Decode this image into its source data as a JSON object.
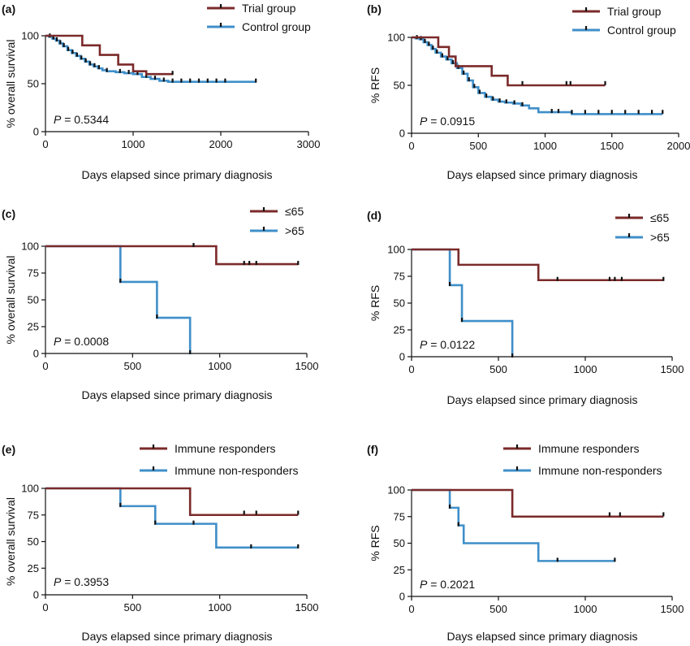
{
  "chart_data": [
    {
      "type": "line",
      "panel": "(a)",
      "xlabel": "Days elapsed since primary diagnosis",
      "ylabel": "% overall survival",
      "xlim": [
        0,
        3000
      ],
      "ylim": [
        0,
        100
      ],
      "xticks": [
        0,
        1000,
        2000,
        3000
      ],
      "yticks": [
        0,
        50,
        100
      ],
      "p_value": "0.5344",
      "legend": "top-right",
      "series": [
        {
          "name": "Trial group",
          "color": "#7b2a2a",
          "steps": [
            [
              0,
              100
            ],
            [
              420,
              90
            ],
            [
              620,
              80
            ],
            [
              830,
              70
            ],
            [
              1000,
              63
            ],
            [
              1150,
              60
            ],
            [
              1450,
              60
            ]
          ],
          "censored": [
            [
              1450,
              60
            ]
          ]
        },
        {
          "name": "Control group",
          "color": "#3f8fc9",
          "steps": [
            [
              0,
              100
            ],
            [
              40,
              99
            ],
            [
              80,
              97
            ],
            [
              120,
              95
            ],
            [
              160,
              92
            ],
            [
              200,
              89
            ],
            [
              250,
              85
            ],
            [
              300,
              82
            ],
            [
              350,
              79
            ],
            [
              400,
              76
            ],
            [
              450,
              73
            ],
            [
              500,
              70
            ],
            [
              550,
              68
            ],
            [
              600,
              66
            ],
            [
              650,
              64
            ],
            [
              700,
              63
            ],
            [
              800,
              62
            ],
            [
              900,
              61
            ],
            [
              1000,
              60
            ],
            [
              1100,
              57
            ],
            [
              1200,
              55
            ],
            [
              1300,
              53
            ],
            [
              1400,
              52
            ],
            [
              2400,
              52
            ]
          ],
          "censored": [
            [
              50,
              99
            ],
            [
              90,
              97
            ],
            [
              130,
              95
            ],
            [
              170,
              92
            ],
            [
              210,
              89
            ],
            [
              260,
              85
            ],
            [
              310,
              82
            ],
            [
              360,
              79
            ],
            [
              410,
              76
            ],
            [
              460,
              73
            ],
            [
              510,
              70
            ],
            [
              560,
              68
            ],
            [
              610,
              66
            ],
            [
              700,
              63
            ],
            [
              850,
              62
            ],
            [
              950,
              61
            ],
            [
              1050,
              60
            ],
            [
              1150,
              57
            ],
            [
              1250,
              55
            ],
            [
              1350,
              53
            ],
            [
              1450,
              52
            ],
            [
              1550,
              52
            ],
            [
              1650,
              52
            ],
            [
              1750,
              52
            ],
            [
              1850,
              52
            ],
            [
              1950,
              52
            ],
            [
              2050,
              52
            ],
            [
              2400,
              52
            ]
          ]
        }
      ]
    },
    {
      "type": "line",
      "panel": "(b)",
      "xlabel": "Days elapsed since primary diagnosis",
      "ylabel": "% RFS",
      "xlim": [
        0,
        2000
      ],
      "ylim": [
        0,
        100
      ],
      "xticks": [
        0,
        500,
        1000,
        1500,
        2000
      ],
      "yticks": [
        0,
        50,
        100
      ],
      "p_value": "0.0915",
      "legend": "top-right",
      "series": [
        {
          "name": "Trial group",
          "color": "#7b2a2a",
          "steps": [
            [
              0,
              100
            ],
            [
              200,
              90
            ],
            [
              280,
              80
            ],
            [
              330,
              70
            ],
            [
              600,
              60
            ],
            [
              720,
              50
            ],
            [
              1450,
              50
            ]
          ],
          "censored": [
            [
              830,
              51
            ],
            [
              1160,
              51
            ],
            [
              1190,
              51
            ],
            [
              1450,
              51
            ]
          ]
        },
        {
          "name": "Control group",
          "color": "#3f8fc9",
          "steps": [
            [
              0,
              100
            ],
            [
              30,
              99
            ],
            [
              60,
              98
            ],
            [
              90,
              95
            ],
            [
              120,
              92
            ],
            [
              150,
              88
            ],
            [
              180,
              84
            ],
            [
              220,
              80
            ],
            [
              260,
              77
            ],
            [
              300,
              73
            ],
            [
              340,
              68
            ],
            [
              380,
              62
            ],
            [
              420,
              55
            ],
            [
              460,
              48
            ],
            [
              500,
              42
            ],
            [
              550,
              38
            ],
            [
              600,
              35
            ],
            [
              650,
              33
            ],
            [
              700,
              32
            ],
            [
              760,
              31
            ],
            [
              820,
              29
            ],
            [
              880,
              26
            ],
            [
              950,
              22
            ],
            [
              1200,
              20
            ],
            [
              1880,
              20
            ]
          ],
          "censored": [
            [
              40,
              99
            ],
            [
              70,
              98
            ],
            [
              100,
              95
            ],
            [
              130,
              92
            ],
            [
              160,
              88
            ],
            [
              190,
              84
            ],
            [
              230,
              80
            ],
            [
              270,
              77
            ],
            [
              310,
              73
            ],
            [
              350,
              68
            ],
            [
              390,
              62
            ],
            [
              430,
              55
            ],
            [
              470,
              48
            ],
            [
              510,
              42
            ],
            [
              560,
              38
            ],
            [
              610,
              35
            ],
            [
              660,
              33
            ],
            [
              710,
              32
            ],
            [
              770,
              31
            ],
            [
              830,
              29
            ],
            [
              1050,
              22
            ],
            [
              1100,
              22
            ],
            [
              1200,
              21
            ],
            [
              1300,
              21
            ],
            [
              1400,
              21
            ],
            [
              1500,
              21
            ],
            [
              1600,
              21
            ],
            [
              1700,
              21
            ],
            [
              1800,
              21
            ],
            [
              1880,
              21
            ]
          ]
        }
      ]
    },
    {
      "type": "line",
      "panel": "(c)",
      "xlabel": "Days elapsed since primary diagnosis",
      "ylabel": "% overall survival",
      "xlim": [
        0,
        1500
      ],
      "ylim": [
        0,
        100
      ],
      "xticks": [
        0,
        500,
        1000,
        1500
      ],
      "yticks": [
        0,
        25,
        50,
        75,
        100
      ],
      "p_value": "0.0008",
      "legend": "top-right",
      "series": [
        {
          "name": "≤65",
          "color": "#7b2a2a",
          "steps": [
            [
              0,
              100
            ],
            [
              980,
              83.3
            ],
            [
              1450,
              83.3
            ]
          ],
          "censored": [
            [
              850,
              100
            ],
            [
              1140,
              83.3
            ],
            [
              1170,
              83.3
            ],
            [
              1210,
              83.3
            ],
            [
              1450,
              83.3
            ]
          ]
        },
        {
          "name": ">65",
          "color": "#3f8fc9",
          "steps": [
            [
              0,
              100
            ],
            [
              430,
              66.7
            ],
            [
              640,
              33.3
            ],
            [
              830,
              0
            ]
          ],
          "censored": [
            [
              430,
              66.7
            ],
            [
              640,
              33.3
            ],
            [
              830,
              0
            ]
          ]
        }
      ]
    },
    {
      "type": "line",
      "panel": "(d)",
      "xlabel": "Days elapsed since primary diagnosis",
      "ylabel": "% RFS",
      "xlim": [
        0,
        1500
      ],
      "ylim": [
        0,
        100
      ],
      "xticks": [
        0,
        500,
        1000,
        1500
      ],
      "yticks": [
        0,
        25,
        50,
        75,
        100
      ],
      "p_value": "0.0122",
      "legend": "top-right",
      "series": [
        {
          "name": "≤65",
          "color": "#7b2a2a",
          "steps": [
            [
              0,
              100
            ],
            [
              270,
              85.7
            ],
            [
              730,
              71.4
            ],
            [
              1450,
              71.4
            ]
          ],
          "censored": [
            [
              840,
              71.4
            ],
            [
              1140,
              71.4
            ],
            [
              1170,
              71.4
            ],
            [
              1210,
              71.4
            ],
            [
              1450,
              71.4
            ]
          ]
        },
        {
          "name": ">65",
          "color": "#3f8fc9",
          "steps": [
            [
              0,
              100
            ],
            [
              220,
              66.7
            ],
            [
              290,
              33.3
            ],
            [
              580,
              0
            ]
          ],
          "censored": [
            [
              220,
              66.7
            ],
            [
              290,
              33.3
            ],
            [
              580,
              0
            ]
          ]
        }
      ]
    },
    {
      "type": "line",
      "panel": "(e)",
      "xlabel": "Days elapsed since primary diagnosis",
      "ylabel": "% overall survival",
      "xlim": [
        0,
        1500
      ],
      "ylim": [
        0,
        100
      ],
      "xticks": [
        0,
        500,
        1000,
        1500
      ],
      "yticks": [
        0,
        25,
        50,
        75,
        100
      ],
      "p_value": "0.3953",
      "legend": "top-right",
      "series": [
        {
          "name": "Immune responders",
          "color": "#7b2a2a",
          "steps": [
            [
              0,
              100
            ],
            [
              830,
              75
            ],
            [
              1450,
              75
            ]
          ],
          "censored": [
            [
              1140,
              76
            ],
            [
              1210,
              76
            ],
            [
              1450,
              76
            ]
          ]
        },
        {
          "name": "Immune non-responders",
          "color": "#3f8fc9",
          "steps": [
            [
              0,
              100
            ],
            [
              430,
              83.3
            ],
            [
              630,
              66.7
            ],
            [
              980,
              44.4
            ],
            [
              1450,
              44.4
            ]
          ],
          "censored": [
            [
              430,
              83.3
            ],
            [
              630,
              66.7
            ],
            [
              850,
              66.7
            ],
            [
              1180,
              44.4
            ],
            [
              1450,
              44.4
            ]
          ]
        }
      ]
    },
    {
      "type": "line",
      "panel": "(f)",
      "xlabel": "Days elapsed since primary diagnosis",
      "ylabel": "% RFS",
      "xlim": [
        0,
        1500
      ],
      "ylim": [
        0,
        100
      ],
      "xticks": [
        0,
        500,
        1000,
        1500
      ],
      "yticks": [
        0,
        25,
        50,
        75,
        100
      ],
      "p_value": "0.2021",
      "legend": "top-right",
      "series": [
        {
          "name": "Immune responders",
          "color": "#7b2a2a",
          "steps": [
            [
              0,
              100
            ],
            [
              580,
              75
            ],
            [
              1450,
              75
            ]
          ],
          "censored": [
            [
              1140,
              76
            ],
            [
              1200,
              76
            ],
            [
              1450,
              76
            ]
          ]
        },
        {
          "name": "Immune non-responders",
          "color": "#3f8fc9",
          "steps": [
            [
              0,
              100
            ],
            [
              220,
              83.3
            ],
            [
              270,
              66.7
            ],
            [
              300,
              50
            ],
            [
              730,
              33.3
            ],
            [
              1170,
              33.3
            ]
          ],
          "censored": [
            [
              220,
              83.3
            ],
            [
              270,
              66.7
            ],
            [
              840,
              33.3
            ],
            [
              1170,
              33.3
            ]
          ]
        }
      ]
    }
  ]
}
